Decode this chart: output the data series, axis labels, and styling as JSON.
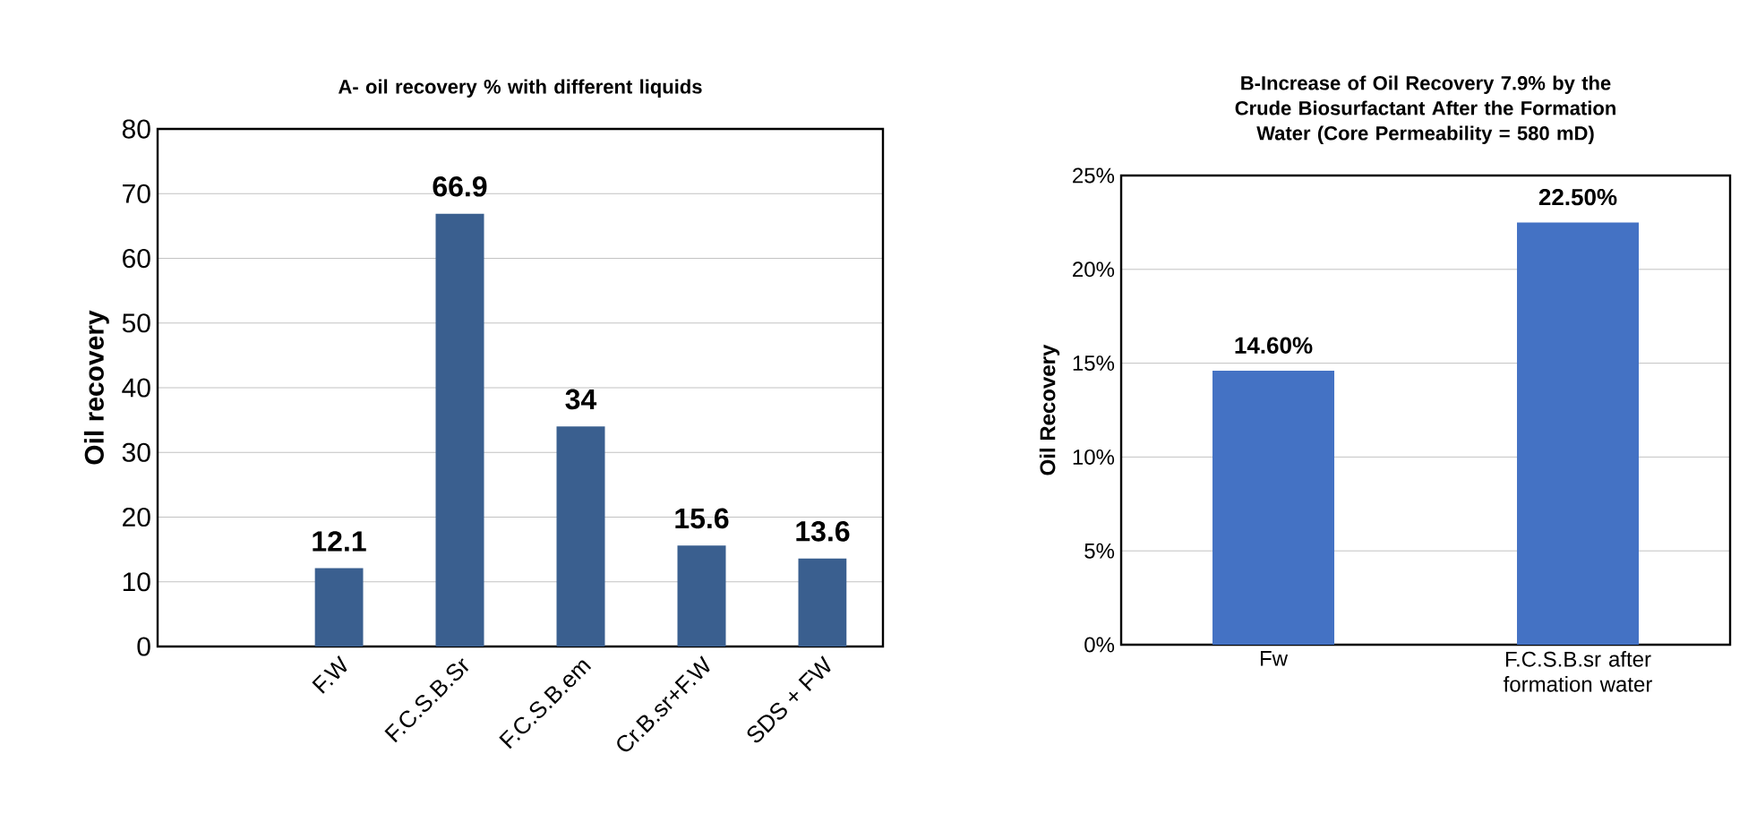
{
  "chart_data": [
    {
      "type": "bar",
      "title": "A- oil recovery % with different liquids",
      "ylabel": "Oil recovery",
      "categories": [
        null,
        "F.W",
        "F.C.S.B.Sr",
        "F.C.S.B.em",
        "Cr.B.sr+F.W",
        "SDS + FW"
      ],
      "values": [
        null,
        12.1,
        66.9,
        34,
        15.6,
        13.6
      ],
      "value_labels": [
        null,
        "12.1",
        "66.9",
        "34",
        "15.6",
        "13.6"
      ],
      "color": "#3a5f8f",
      "ylim": [
        0,
        80
      ],
      "yticks": [
        0,
        10,
        20,
        30,
        40,
        50,
        60,
        70,
        80
      ],
      "grid": "y"
    },
    {
      "type": "bar",
      "title": "B-Increase of Oil Recovery 7.9% by the Crude Biosurfactant After the Formation Water (Core Permeability = 580 mD)",
      "ylabel": "Oil Recovery",
      "categories": [
        "Fw",
        "F.C.S.B.sr after formation water"
      ],
      "values": [
        14.6,
        22.5
      ],
      "value_labels": [
        "14.60%",
        "22.50%"
      ],
      "color": "#4472c4",
      "ylim": [
        0,
        25
      ],
      "yticks": [
        {
          "value": 0,
          "label": "0%"
        },
        {
          "value": 5,
          "label": "5%"
        },
        {
          "value": 10,
          "label": "10%"
        },
        {
          "value": 15,
          "label": "15%"
        },
        {
          "value": 20,
          "label": "20%"
        },
        {
          "value": 25,
          "label": "25%"
        }
      ],
      "grid": "y"
    }
  ]
}
